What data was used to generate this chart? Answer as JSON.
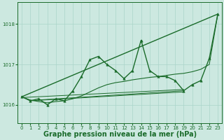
{
  "bg_color": "#cce8e0",
  "grid_color": "#aad4ca",
  "line_color": "#1a6b2a",
  "xlabel": "Graphe pression niveau de la mer (hPa)",
  "xlabel_fontsize": 7,
  "ylabel_ticks": [
    1016,
    1017,
    1018
  ],
  "xlim": [
    -0.5,
    23.5
  ],
  "ylim": [
    1015.55,
    1018.55
  ],
  "xticks": [
    0,
    1,
    2,
    3,
    4,
    5,
    6,
    7,
    8,
    9,
    10,
    11,
    12,
    13,
    14,
    15,
    16,
    17,
    18,
    19,
    20,
    21,
    22,
    23
  ],
  "main_line": {
    "x": [
      0,
      1,
      2,
      3,
      4,
      5,
      6,
      7,
      8,
      9,
      10,
      11,
      12,
      13,
      14,
      15,
      16,
      17,
      18,
      19,
      20,
      21,
      22,
      23
    ],
    "y": [
      1016.2,
      1016.1,
      1016.15,
      1016.0,
      1016.15,
      1016.1,
      1016.35,
      1016.7,
      1017.12,
      1017.2,
      1017.0,
      1016.85,
      1016.65,
      1016.85,
      1017.6,
      1016.85,
      1016.7,
      1016.7,
      1016.6,
      1016.35,
      1016.5,
      1016.6,
      1017.15,
      1018.25
    ]
  },
  "smooth_line": {
    "x": [
      0,
      1,
      2,
      3,
      4,
      5,
      6,
      7,
      8,
      9,
      10,
      11,
      12,
      13,
      14,
      15,
      16,
      17,
      18,
      19,
      20,
      21,
      22,
      23
    ],
    "y": [
      1016.2,
      1016.12,
      1016.08,
      1016.05,
      1016.08,
      1016.1,
      1016.15,
      1016.22,
      1016.32,
      1016.42,
      1016.5,
      1016.55,
      1016.58,
      1016.62,
      1016.65,
      1016.68,
      1016.7,
      1016.73,
      1016.76,
      1016.78,
      1016.82,
      1016.88,
      1017.0,
      1018.25
    ]
  },
  "trend_line1": {
    "x": [
      0,
      23
    ],
    "y": [
      1016.2,
      1018.25
    ]
  },
  "trend_line2": {
    "x": [
      0,
      19
    ],
    "y": [
      1016.18,
      1016.38
    ]
  },
  "trend_line3": {
    "x": [
      2,
      19
    ],
    "y": [
      1016.12,
      1016.35
    ]
  },
  "trend_line4": {
    "x": [
      1,
      19
    ],
    "y": [
      1016.1,
      1016.32
    ]
  }
}
